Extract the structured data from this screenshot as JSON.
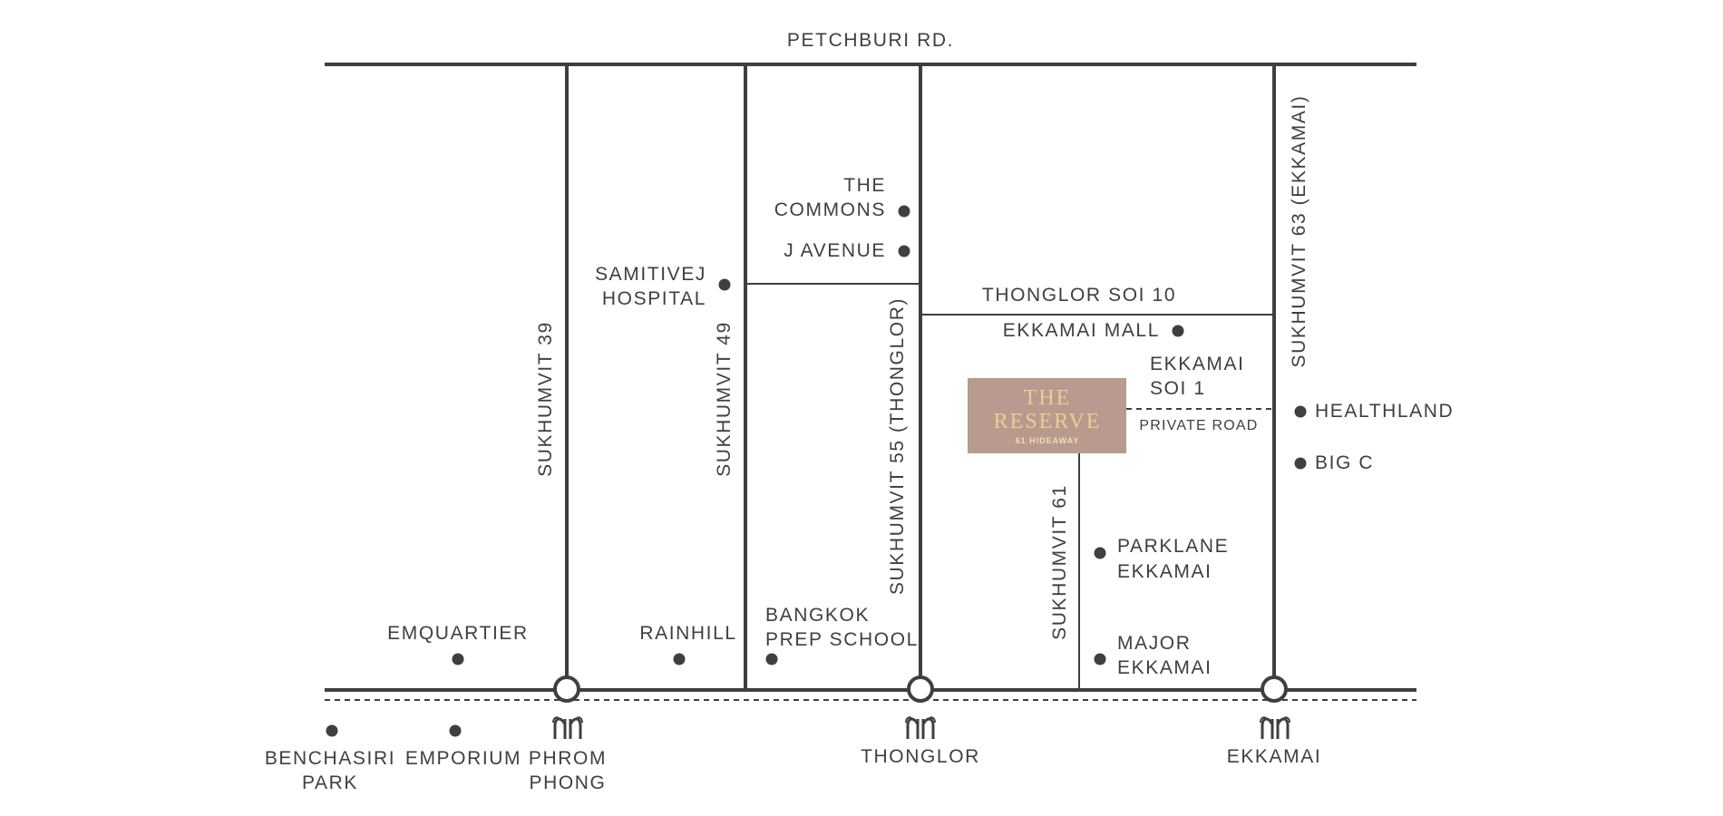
{
  "roads": {
    "petchburi": "PETCHBURI RD.",
    "sukhumvit_39": "SUKHUMVIT 39",
    "sukhumvit_49": "SUKHUMVIT 49",
    "sukhumvit_55": "SUKHUMVIT 55 (THONGLOR)",
    "sukhumvit_61": "SUKHUMVIT 61",
    "sukhumvit_63": "SUKHUMVIT 63 (EKKAMAI)",
    "thonglor_soi_10": "THONGLOR SOI 10",
    "ekkamai_soi_1": [
      "EKKAMAI",
      "SOI 1"
    ],
    "private_road": "PRIVATE ROAD"
  },
  "landmarks": {
    "the_commons": [
      "THE",
      "COMMONS"
    ],
    "j_avenue": "J AVENUE",
    "samitivej": [
      "SAMITIVEJ",
      "HOSPITAL"
    ],
    "ekkamai_mall": "EKKAMAI MALL",
    "healthland": "HEALTHLAND",
    "big_c": "BIG C",
    "parklane": [
      "PARKLANE",
      "EKKAMAI"
    ],
    "major": [
      "MAJOR",
      "EKKAMAI"
    ],
    "emquartier": "EMQUARTIER",
    "rainhill": "RAINHILL",
    "bangkok_prep": [
      "BANGKOK",
      "PREP SCHOOL"
    ],
    "benchasiri": [
      "BENCHASIRI",
      "PARK"
    ],
    "emporium": "EMPORIUM"
  },
  "stations": {
    "phrom_phong": [
      "PHROM",
      "PHONG"
    ],
    "thonglor": "THONGLOR",
    "ekkamai": "EKKAMAI"
  },
  "project_logo": {
    "line1": "THE",
    "line2": "RESERVE",
    "line3": "61 HIDEAWAY"
  },
  "colors": {
    "road": "#3f3f3f",
    "logo_background": "#b89a8e",
    "logo_text": "#e6cf95"
  }
}
